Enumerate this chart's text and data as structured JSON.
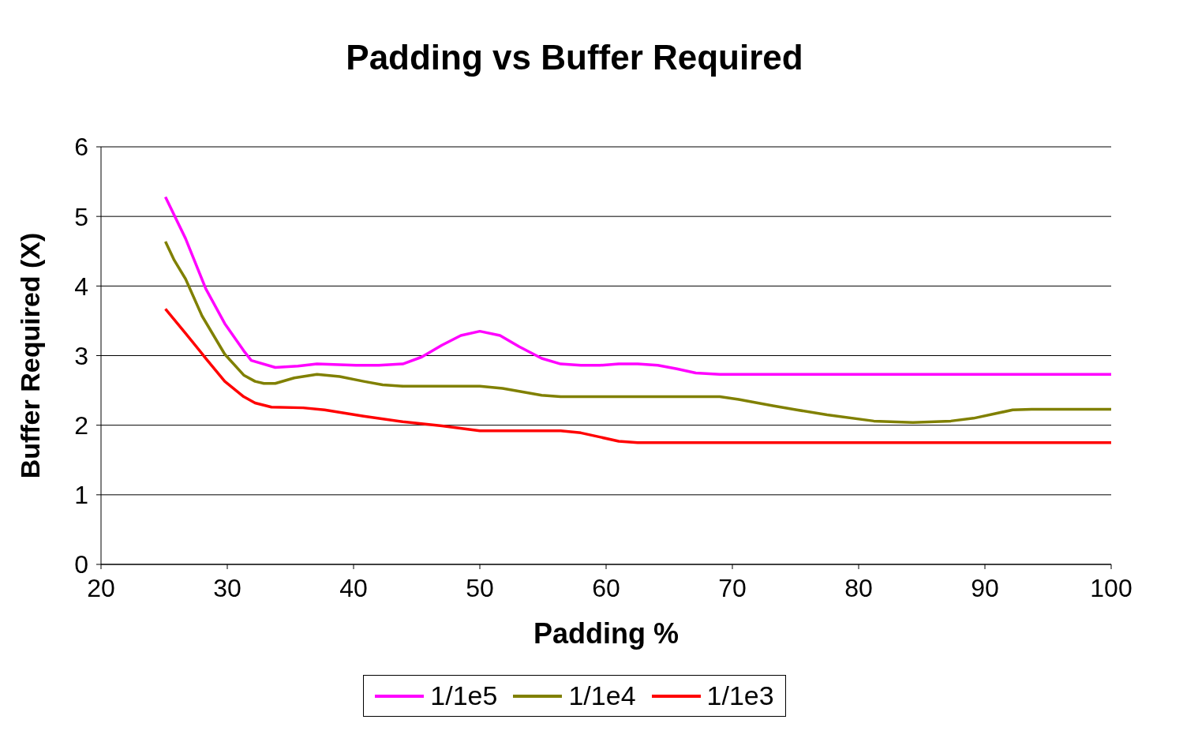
{
  "chart_data": {
    "type": "line",
    "title": "Padding vs Buffer Required",
    "xlabel": "Padding %",
    "ylabel": "Buffer Required (X)",
    "xlim": [
      20,
      100
    ],
    "xticks": [
      20,
      30,
      40,
      50,
      60,
      70,
      80,
      90,
      100
    ],
    "ylim": [
      0,
      6
    ],
    "yticks": [
      0,
      1,
      2,
      3,
      4,
      5,
      6
    ],
    "grid": "y",
    "legend": "bottom",
    "marker": "none",
    "line_style": "solid",
    "series": [
      {
        "name": "1/1e5",
        "color": "#ff00ff",
        "x": [
          25.1,
          26.7,
          28.3,
          29.8,
          31.3,
          31.9,
          33.8,
          35.6,
          37.1,
          40.2,
          42,
          43.9,
          45.4,
          47,
          48.5,
          50,
          51.6,
          53.1,
          54.9,
          56.4,
          58,
          59.5,
          61,
          62.5,
          64.1,
          65.6,
          67.1,
          69,
          100
        ],
        "values": [
          5.28,
          4.68,
          3.96,
          3.46,
          3.07,
          2.93,
          2.83,
          2.85,
          2.88,
          2.86,
          2.86,
          2.88,
          2.98,
          3.15,
          3.29,
          3.35,
          3.29,
          3.13,
          2.96,
          2.88,
          2.86,
          2.86,
          2.88,
          2.88,
          2.86,
          2.81,
          2.75,
          2.73,
          2.73
        ]
      },
      {
        "name": "1/1e4",
        "color": "#808000",
        "x": [
          25.1,
          25.8,
          26.7,
          28,
          29.8,
          31.3,
          32.2,
          32.9,
          33.8,
          35.3,
          37.1,
          38.9,
          40.8,
          42.3,
          43.9,
          50,
          51.8,
          54.9,
          56.4,
          69,
          70.5,
          73.2,
          75.1,
          77.5,
          81.2,
          84.3,
          87.3,
          89.1,
          92.2,
          93.7,
          100
        ],
        "values": [
          4.64,
          4.37,
          4.1,
          3.57,
          3.02,
          2.72,
          2.63,
          2.6,
          2.6,
          2.68,
          2.73,
          2.7,
          2.63,
          2.58,
          2.56,
          2.56,
          2.53,
          2.43,
          2.41,
          2.41,
          2.37,
          2.28,
          2.22,
          2.15,
          2.06,
          2.04,
          2.06,
          2.1,
          2.22,
          2.23,
          2.23
        ]
      },
      {
        "name": "1/1e3",
        "color": "#ff0000",
        "x": [
          25.1,
          26.7,
          28.3,
          29.8,
          31.3,
          32.2,
          33.5,
          36,
          37.7,
          40.8,
          43.9,
          47,
          50,
          56.4,
          58,
          59.5,
          61,
          62.5,
          100
        ],
        "values": [
          3.67,
          3.32,
          2.96,
          2.63,
          2.41,
          2.32,
          2.26,
          2.25,
          2.22,
          2.13,
          2.05,
          1.99,
          1.92,
          1.92,
          1.89,
          1.83,
          1.77,
          1.75,
          1.75
        ]
      }
    ]
  }
}
